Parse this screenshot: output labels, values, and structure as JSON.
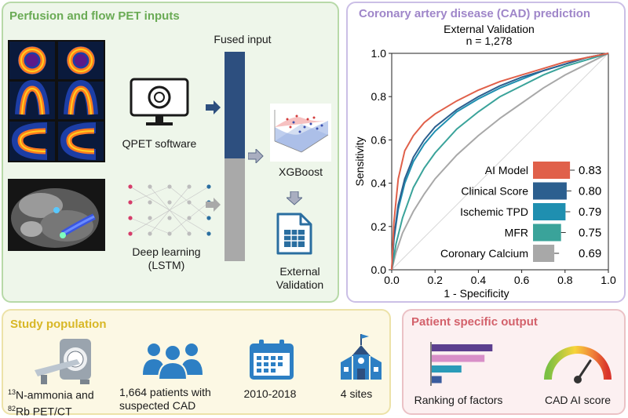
{
  "colors": {
    "green_title": "#6aab55",
    "purple_title": "#9f86c9",
    "yellow_title": "#d8b726",
    "red_title": "#d3616b",
    "navy": "#2d4f7f",
    "gray": "#a9a9a9"
  },
  "inputs_panel": {
    "title": "Perfusion and flow PET inputs",
    "qpet_label": "QPET  software",
    "deep_learning_label_line1": "Deep learning",
    "deep_learning_label_line2": "(LSTM)",
    "fused_input_label": "Fused input",
    "xgboost_label": "XGBoost",
    "external_validation_line1": "External",
    "external_validation_line2": "Validation"
  },
  "cad_panel": {
    "title": "Coronary artery disease (CAD) prediction",
    "chart_title_line1": "External Validation",
    "chart_title_line2": "n = 1,278"
  },
  "chart_data": [
    {
      "type": "line",
      "title": "External Validation n = 1,278",
      "xlabel": "1 - Specificity",
      "ylabel": "Sensitivity",
      "xlim": [
        0,
        1
      ],
      "ylim": [
        0,
        1
      ],
      "x_ticks": [
        "0.0",
        "0.2",
        "0.4",
        "0.6",
        "0.8",
        "1.0"
      ],
      "y_ticks": [
        "0.0",
        "0.2",
        "0.4",
        "0.6",
        "0.8",
        "1.0"
      ],
      "series": [
        {
          "name": "AI Model",
          "color": "#e0604a",
          "points": [
            [
              0,
              0
            ],
            [
              0.01,
              0.22
            ],
            [
              0.03,
              0.42
            ],
            [
              0.06,
              0.55
            ],
            [
              0.1,
              0.62
            ],
            [
              0.15,
              0.68
            ],
            [
              0.2,
              0.72
            ],
            [
              0.3,
              0.78
            ],
            [
              0.4,
              0.83
            ],
            [
              0.5,
              0.87
            ],
            [
              0.6,
              0.9
            ],
            [
              0.7,
              0.93
            ],
            [
              0.8,
              0.96
            ],
            [
              0.9,
              0.98
            ],
            [
              1,
              1
            ]
          ]
        },
        {
          "name": "Clinical Score",
          "color": "#2c5f8f",
          "points": [
            [
              0,
              0
            ],
            [
              0.01,
              0.15
            ],
            [
              0.03,
              0.3
            ],
            [
              0.06,
              0.42
            ],
            [
              0.1,
              0.52
            ],
            [
              0.15,
              0.6
            ],
            [
              0.2,
              0.66
            ],
            [
              0.3,
              0.74
            ],
            [
              0.4,
              0.8
            ],
            [
              0.5,
              0.85
            ],
            [
              0.6,
              0.89
            ],
            [
              0.7,
              0.92
            ],
            [
              0.8,
              0.95
            ],
            [
              0.9,
              0.98
            ],
            [
              1,
              1
            ]
          ]
        },
        {
          "name": "Ischemic TPD",
          "color": "#1f8fb0",
          "points": [
            [
              0,
              0
            ],
            [
              0.01,
              0.14
            ],
            [
              0.03,
              0.28
            ],
            [
              0.06,
              0.4
            ],
            [
              0.1,
              0.5
            ],
            [
              0.15,
              0.58
            ],
            [
              0.2,
              0.64
            ],
            [
              0.3,
              0.73
            ],
            [
              0.4,
              0.79
            ],
            [
              0.5,
              0.84
            ],
            [
              0.6,
              0.88
            ],
            [
              0.7,
              0.92
            ],
            [
              0.8,
              0.95
            ],
            [
              0.9,
              0.98
            ],
            [
              1,
              1
            ]
          ]
        },
        {
          "name": "MFR",
          "color": "#3aa39a",
          "points": [
            [
              0,
              0
            ],
            [
              0.02,
              0.12
            ],
            [
              0.05,
              0.24
            ],
            [
              0.1,
              0.38
            ],
            [
              0.15,
              0.47
            ],
            [
              0.2,
              0.54
            ],
            [
              0.3,
              0.65
            ],
            [
              0.4,
              0.73
            ],
            [
              0.5,
              0.8
            ],
            [
              0.6,
              0.85
            ],
            [
              0.7,
              0.9
            ],
            [
              0.8,
              0.94
            ],
            [
              0.9,
              0.97
            ],
            [
              1,
              1
            ]
          ]
        },
        {
          "name": "Coronary Calcium",
          "color": "#a8a8a8",
          "points": [
            [
              0,
              0
            ],
            [
              0.02,
              0.08
            ],
            [
              0.05,
              0.17
            ],
            [
              0.1,
              0.27
            ],
            [
              0.15,
              0.35
            ],
            [
              0.2,
              0.42
            ],
            [
              0.3,
              0.53
            ],
            [
              0.4,
              0.62
            ],
            [
              0.5,
              0.7
            ],
            [
              0.6,
              0.77
            ],
            [
              0.7,
              0.84
            ],
            [
              0.8,
              0.9
            ],
            [
              0.9,
              0.95
            ],
            [
              1,
              1
            ]
          ]
        }
      ]
    },
    {
      "type": "bar",
      "title": "",
      "orientation": "horizontal",
      "categories": [
        "AI Model",
        "Clinical Score",
        "Ischemic TPD",
        "MFR",
        "Coronary Calcium"
      ],
      "values": [
        0.83,
        0.8,
        0.79,
        0.75,
        0.69
      ],
      "value_labels": [
        "0.83",
        "0.80",
        "0.79",
        "0.75",
        "0.69"
      ],
      "colors": [
        "#e0604a",
        "#2c5f8f",
        "#1f8fb0",
        "#3aa39a",
        "#a8a8a8"
      ],
      "xlim": [
        0.5,
        0.85
      ]
    }
  ],
  "study_panel": {
    "title": "Study population",
    "item1_line1_sup": "13",
    "item1_line1": "N-ammonia and",
    "item1_line2_sup": "82",
    "item1_line2": "Rb PET/CT",
    "item2_line1": "1,664 patients with",
    "item2_line2": "suspected CAD",
    "item3": "2010-2018",
    "item4": "4 sites"
  },
  "output_panel": {
    "title": "Patient specific output",
    "ranking_label": "Ranking of factors",
    "ranking_bars": [
      0.92,
      0.8,
      0.45,
      0.15
    ],
    "ranking_colors": [
      "#5c3f8f",
      "#d88fc8",
      "#2a9bb8",
      "#3a5c9f"
    ],
    "gauge_label": "CAD AI score"
  }
}
